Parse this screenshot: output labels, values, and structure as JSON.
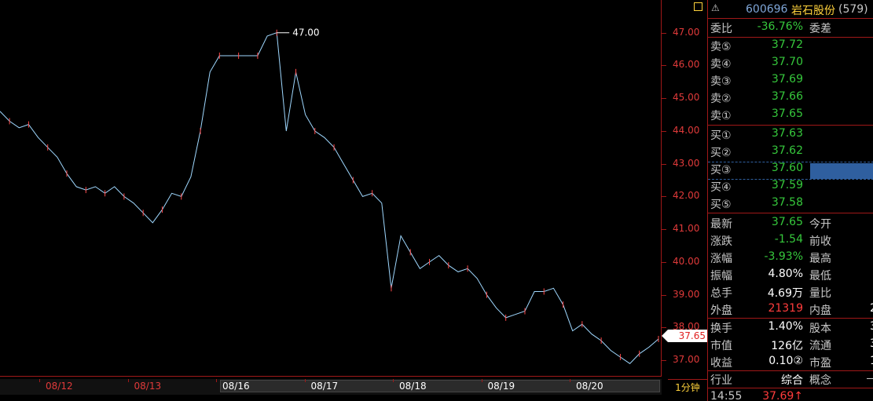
{
  "chart_data": {
    "type": "line",
    "x_labels": [
      "08/12",
      "08/13",
      "08/16",
      "08/17",
      "08/18",
      "08/19",
      "08/20"
    ],
    "y_ticks": [
      "47.00",
      "46.00",
      "45.00",
      "44.00",
      "43.00",
      "42.00",
      "41.00",
      "40.00",
      "39.00",
      "38.00",
      "37.00"
    ],
    "ylim": [
      36.5,
      48.0
    ],
    "max_annotation": "47.00",
    "current_price_label": "37.65",
    "period_label": "1分钟",
    "grid": false,
    "series": [
      {
        "values": [
          44.6,
          44.3,
          44.1,
          44.2,
          43.8,
          43.5,
          43.2,
          42.7,
          42.3,
          42.2,
          42.3,
          42.1,
          42.3,
          42.0,
          41.8,
          41.5,
          41.2,
          41.6,
          42.1,
          42.0,
          42.6,
          44.0,
          45.8,
          46.3,
          46.3,
          46.3,
          46.3,
          46.3,
          46.9,
          47.0,
          44.0,
          45.8,
          44.5,
          44.0,
          43.8,
          43.5,
          43.0,
          42.5,
          42.0,
          42.1,
          41.8,
          39.2,
          40.8,
          40.3,
          39.8,
          40.0,
          40.2,
          39.9,
          39.7,
          39.8,
          39.5,
          39.0,
          38.6,
          38.3,
          38.4,
          38.5,
          39.1,
          39.1,
          39.2,
          38.7,
          37.9,
          38.1,
          37.8,
          37.6,
          37.3,
          37.1,
          36.9,
          37.2,
          37.4,
          37.65
        ]
      }
    ]
  },
  "panel": {
    "warn_icon": "warning-icon",
    "code": "600696",
    "name": "岩石股份",
    "count": "(579)",
    "weibi_label": "委比",
    "weibi_value": "-36.76%",
    "weicha_label": "委差",
    "sell": [
      {
        "label": "卖⑤",
        "price": "37.72"
      },
      {
        "label": "卖④",
        "price": "37.70"
      },
      {
        "label": "卖③",
        "price": "37.69"
      },
      {
        "label": "卖②",
        "price": "37.66"
      },
      {
        "label": "卖①",
        "price": "37.65"
      }
    ],
    "buy": [
      {
        "label": "买①",
        "price": "37.63"
      },
      {
        "label": "买②",
        "price": "37.62"
      },
      {
        "label": "买③",
        "price": "37.60"
      },
      {
        "label": "买④",
        "price": "37.59"
      },
      {
        "label": "买⑤",
        "price": "37.58"
      }
    ],
    "stats": [
      {
        "label": "最新",
        "value": "37.65",
        "label2": "今开",
        "value2": ""
      },
      {
        "label": "涨跌",
        "value": "-1.54",
        "label2": "前收",
        "value2": ""
      },
      {
        "label": "涨幅",
        "value": "-3.93%",
        "label2": "最高",
        "value2": ""
      },
      {
        "label": "振幅",
        "value": "4.80%",
        "label2": "最低",
        "value2": ""
      },
      {
        "label": "总手",
        "value": "4.69万",
        "label2": "量比",
        "value2": ""
      },
      {
        "label": "外盘",
        "value": "21319",
        "label2": "内盘",
        "value2": "2"
      }
    ],
    "stats2": [
      {
        "label": "换手",
        "value": "1.40%",
        "label2": "股本",
        "value2": "3"
      },
      {
        "label": "市值",
        "value": "126亿",
        "label2": "流通",
        "value2": "3"
      },
      {
        "label": "收益",
        "value": "0.10②",
        "label2": "市盈",
        "value2": "1"
      }
    ],
    "industry_label": "行业",
    "industry_value": "综合",
    "concept_label": "概念",
    "tick_time": "14:55",
    "tick_price": "37.69↑"
  }
}
